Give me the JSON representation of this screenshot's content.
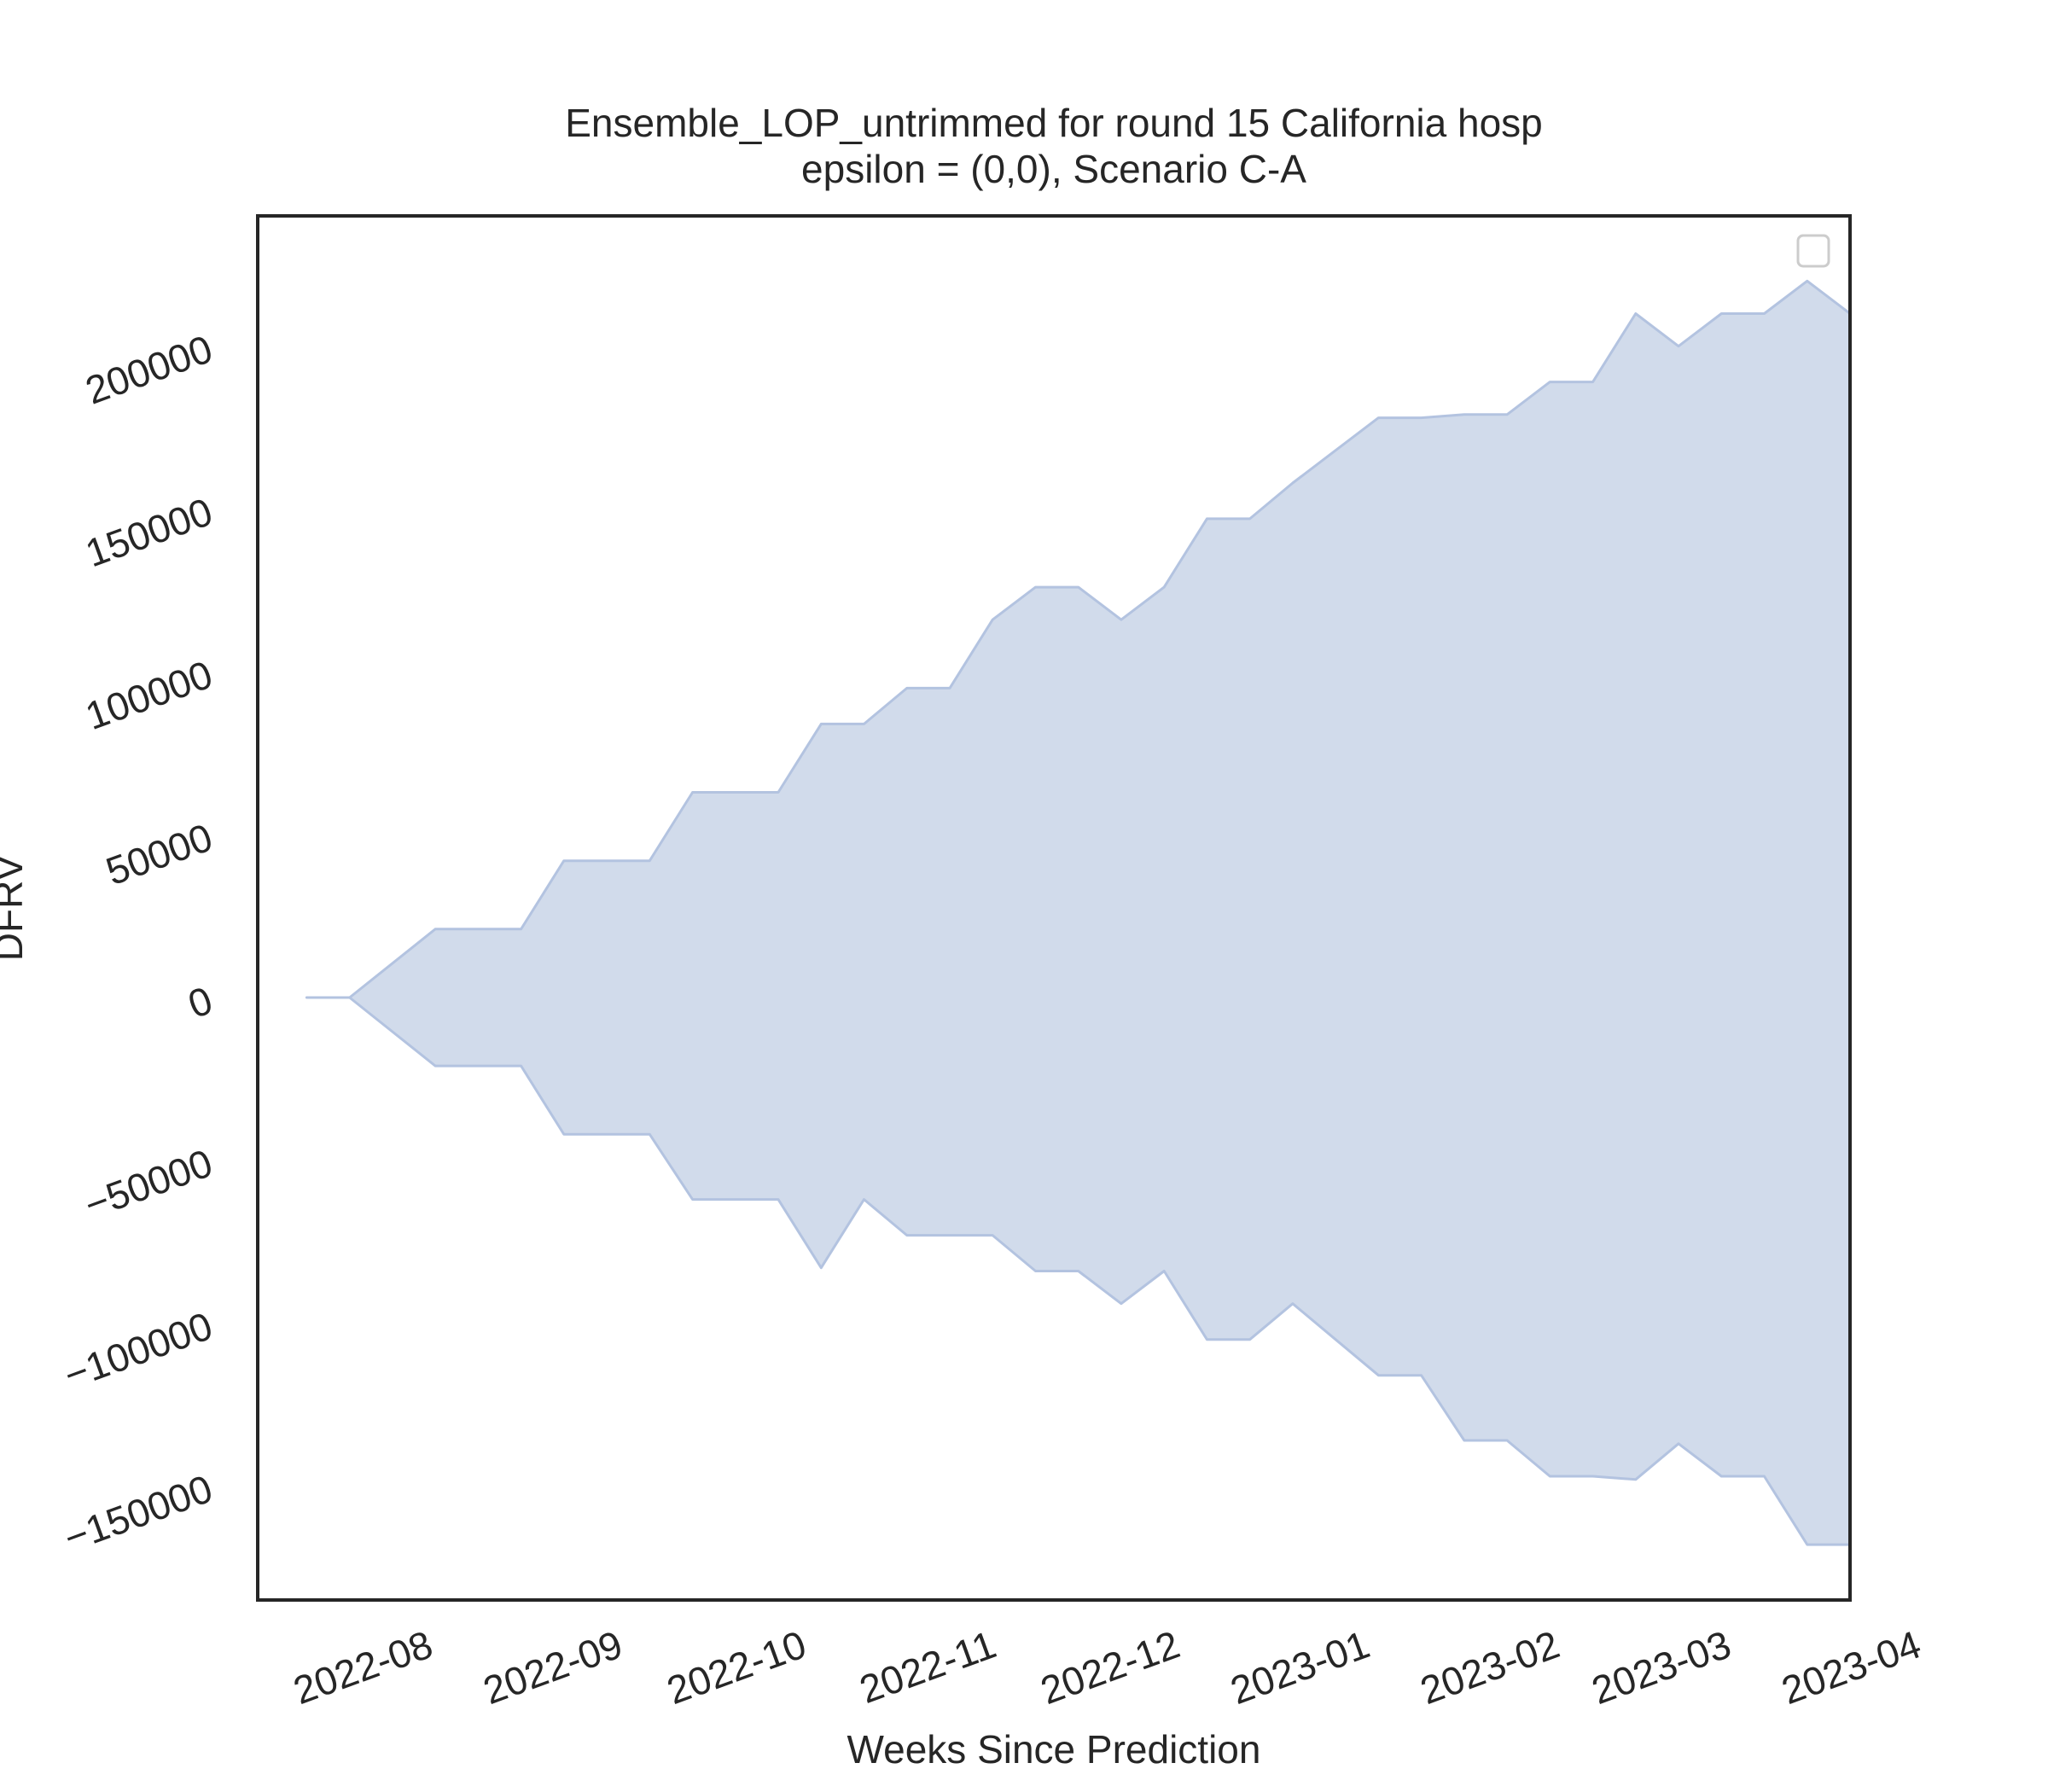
{
  "chart_data": {
    "type": "area",
    "title": "Ensemble_LOP_untrimmed for round 15 California hosp",
    "subtitle": "epsilon = (0,0), Scenario C-A",
    "xlabel": "Weeks Since Prediction",
    "ylabel": "DFRV",
    "x_tick_labels": [
      "2022-08",
      "2022-09",
      "2022-10",
      "2022-11",
      "2022-12",
      "2023-01",
      "2023-02",
      "2023-03",
      "2023-04"
    ],
    "y_tick_labels": [
      "200000",
      "150000",
      "100000",
      "50000",
      "0",
      "−50000",
      "−100000",
      "−150000"
    ],
    "y_ticks": [
      200000,
      150000,
      100000,
      50000,
      0,
      -50000,
      -100000,
      -150000
    ],
    "ylim": [
      -185000,
      240000
    ],
    "xlim": [
      "2022-07-15",
      "2023-04-01"
    ],
    "grid": false,
    "legend": {
      "placement": "top-right",
      "entries": []
    },
    "fill_color": "#d1dbeb",
    "line_color": "#b3c3e0",
    "series": [
      {
        "x": [
          "2022-07-23",
          "2022-07-30",
          "2022-08-13",
          "2022-08-27",
          "2022-09-03",
          "2022-09-17",
          "2022-09-24",
          "2022-10-08",
          "2022-10-15",
          "2022-10-22",
          "2022-10-29",
          "2022-11-05",
          "2022-11-12",
          "2022-11-19",
          "2022-11-26",
          "2022-12-03",
          "2022-12-10",
          "2022-12-17",
          "2022-12-24",
          "2022-12-31",
          "2023-01-07",
          "2023-01-14",
          "2023-01-21",
          "2023-01-28",
          "2023-02-04",
          "2023-02-11",
          "2023-02-18",
          "2023-02-25",
          "2023-03-04",
          "2023-03-11",
          "2023-03-18",
          "2023-03-25"
        ],
        "upper": [
          0,
          0,
          21000,
          21000,
          42000,
          42000,
          63000,
          63000,
          84000,
          84000,
          95000,
          95000,
          116000,
          126000,
          126000,
          116000,
          126000,
          147000,
          147000,
          158000,
          168000,
          178000,
          178000,
          179000,
          179000,
          189000,
          189000,
          210000,
          200000,
          210000,
          210000,
          220000
        ],
        "lower": [
          0,
          0,
          -21000,
          -21000,
          -42000,
          -42000,
          -62000,
          -62000,
          -83000,
          -62000,
          -73000,
          -73000,
          -73000,
          -84000,
          -84000,
          -94000,
          -84000,
          -105000,
          -105000,
          -94000,
          -105000,
          -116000,
          -116000,
          -136000,
          -136000,
          -147000,
          -147000,
          -148000,
          -137000,
          -147000,
          -147000,
          -168000
        ]
      }
    ],
    "end": {
      "x": "2023-04-01",
      "upper": 210000,
      "lower": -168000
    }
  }
}
